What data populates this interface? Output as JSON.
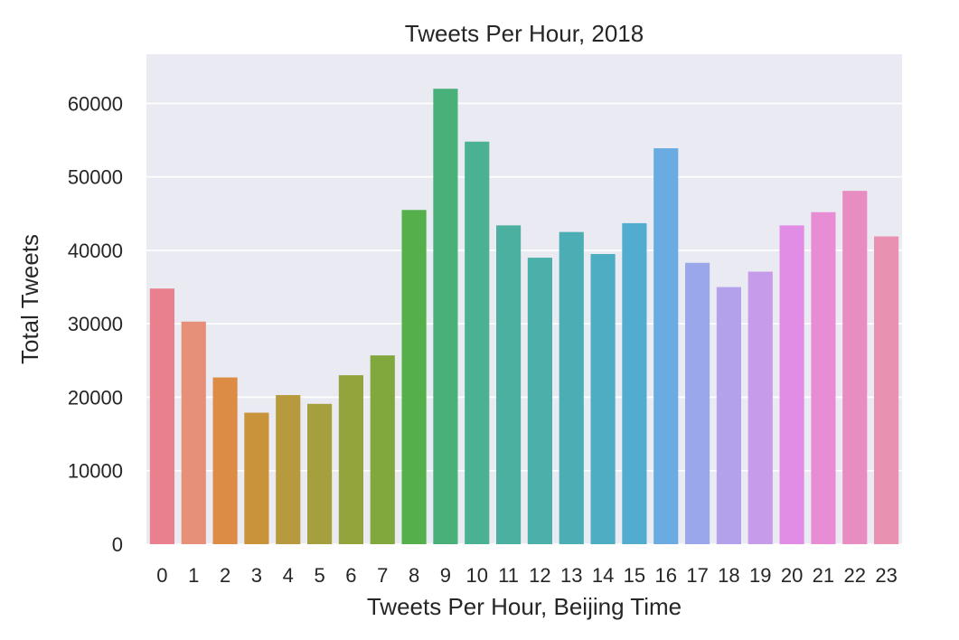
{
  "chart_data": {
    "type": "bar",
    "title": "Tweets Per Hour, 2018",
    "xlabel": "Tweets Per Hour, Beijing Time",
    "ylabel": "Total Tweets",
    "categories": [
      "0",
      "1",
      "2",
      "3",
      "4",
      "5",
      "6",
      "7",
      "8",
      "9",
      "10",
      "11",
      "12",
      "13",
      "14",
      "15",
      "16",
      "17",
      "18",
      "19",
      "20",
      "21",
      "22",
      "23"
    ],
    "values": [
      34800,
      30300,
      22700,
      17900,
      20300,
      19100,
      23000,
      25700,
      45500,
      62000,
      54800,
      43400,
      39000,
      42500,
      39500,
      43700,
      53900,
      38300,
      35000,
      37100,
      43400,
      45200,
      48100,
      41900
    ],
    "ylim": [
      0,
      66700
    ],
    "yticks": [
      0,
      10000,
      20000,
      30000,
      40000,
      50000,
      60000
    ],
    "grid": true,
    "colors": {
      "background": "#eaeaf2",
      "grid": "#ffffff",
      "bars": [
        "#e8818d",
        "#e6907a",
        "#dc8c45",
        "#c8933b",
        "#b69a3d",
        "#a59f3d",
        "#93a43c",
        "#80a83d",
        "#55b04b",
        "#4ab07a",
        "#4ab292",
        "#4bb0a0",
        "#4bb0aa",
        "#4baeb4",
        "#4dadc2",
        "#52acd0",
        "#6aace2",
        "#9aa8eb",
        "#b4a1ec",
        "#c69bea",
        "#e18de6",
        "#e88dd4",
        "#e88dc1",
        "#e891b0"
      ]
    }
  }
}
